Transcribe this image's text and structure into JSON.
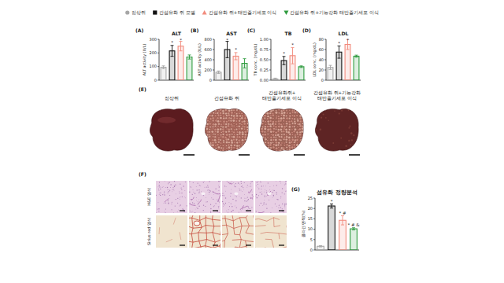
{
  "groups": [
    {
      "name": "정상쥐",
      "color": "#a6a6a6",
      "marker": "circle"
    },
    {
      "name": "간섬유화 쥐 모델",
      "color": "#111111",
      "marker": "square"
    },
    {
      "name": "간섬유화 쥐+태반줄기세포 이식",
      "color": "#f28b7d",
      "marker": "triangle"
    },
    {
      "name": "간섬유화 쥐+기능강화 태반줄기세포 이식",
      "color": "#2e9b3e",
      "marker": "triangle-down"
    }
  ],
  "chart_data": [
    {
      "type": "bar",
      "panel": "(A)",
      "title": "ALT",
      "y_label": "ALT activity (U/L)",
      "categories": [
        null,
        null,
        null,
        null
      ],
      "values": [
        95,
        215,
        250,
        170
      ],
      "errors": [
        10,
        40,
        35,
        15
      ],
      "annotations": [
        null,
        "*",
        "*",
        null
      ],
      "ylim": [
        0,
        300
      ],
      "yticks": [
        0,
        100,
        200,
        300
      ],
      "tick_labels": "y"
    },
    {
      "type": "bar",
      "panel": "(B)",
      "title": "AST",
      "y_label": "AST activity (U/L)",
      "categories": [
        null,
        null,
        null,
        null
      ],
      "values": [
        155,
        600,
        470,
        330
      ],
      "errors": [
        25,
        160,
        70,
        90
      ],
      "annotations": [
        null,
        "*",
        "*",
        null
      ],
      "ylim": [
        0,
        800
      ],
      "yticks": [
        0,
        200,
        400,
        600,
        800
      ],
      "tick_labels": "y"
    },
    {
      "type": "bar",
      "panel": "(C)",
      "title": "TB",
      "y_label": "TB conc. (mg/dL)",
      "categories": [
        null,
        null,
        null,
        null
      ],
      "values": [
        0.03,
        0.48,
        0.6,
        0.33
      ],
      "errors": [
        0.02,
        0.1,
        0.2,
        0.02
      ],
      "annotations": [
        null,
        "*",
        "*",
        null
      ],
      "ylim": [
        0,
        1
      ],
      "yticks": [
        {
          "value": 0,
          "label": "0.00"
        },
        {
          "value": 0.25,
          "label": "0.25"
        },
        {
          "value": 0.5,
          "label": "0.50"
        },
        {
          "value": 0.75,
          "label": "0.75"
        },
        {
          "value": 1,
          "label": "1.00"
        }
      ],
      "tick_labels": "y"
    },
    {
      "type": "bar",
      "panel": "(D)",
      "title": "LDL",
      "y_label": "LDL conc. (mg/dL)",
      "categories": [
        null,
        null,
        null,
        null
      ],
      "values": [
        25,
        55,
        70,
        47
      ],
      "errors": [
        4,
        12,
        10,
        2
      ],
      "annotations": [
        null,
        "*",
        "*",
        null
      ],
      "ylim": [
        0,
        80
      ],
      "yticks": [
        0,
        20,
        40,
        60,
        80
      ],
      "tick_labels": "y"
    },
    {
      "type": "bar",
      "panel": "(G)",
      "title": "섬유화 정량분석",
      "y_label": "콜라겐 면적(%)",
      "categories": [
        null,
        null,
        null,
        null
      ],
      "values": [
        1.8,
        21.2,
        14.3,
        10.2
      ],
      "errors": [
        0.3,
        1,
        2.2,
        0.5
      ],
      "annotations": [
        null,
        "*",
        "* #",
        "* # &"
      ],
      "ylim": [
        0,
        25
      ],
      "yticks": [
        0,
        5,
        10,
        15,
        20,
        25
      ],
      "tick_labels": "y"
    }
  ],
  "photos": {
    "panel": "(E)",
    "labels": [
      "정상쥐",
      "간섬유화 쥐",
      "간섬유화쥐+\n태반줄기세포 이식",
      "간섬유화 쥐+기능강화\n태반줄기세포 이식"
    ]
  },
  "histology": {
    "panel": "(F)",
    "rows": [
      "H&E 염색",
      "Sirius red 염색"
    ]
  }
}
